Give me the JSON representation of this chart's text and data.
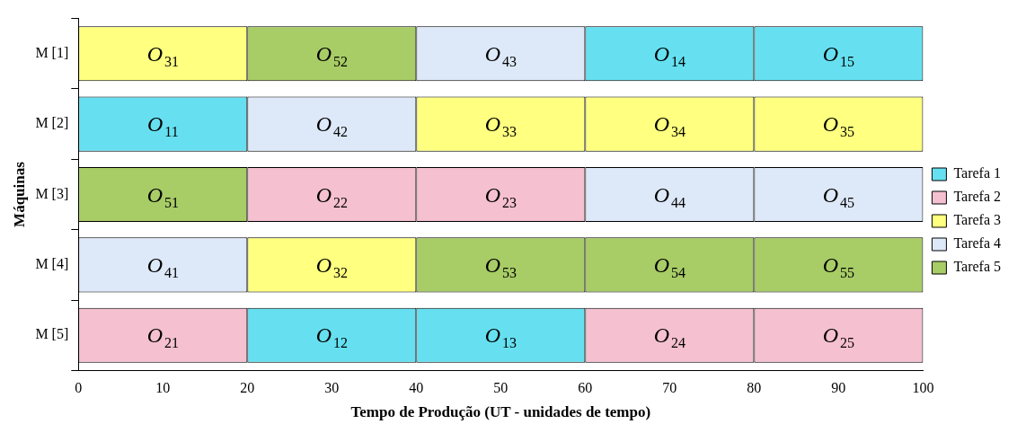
{
  "chart_data": {
    "type": "bar",
    "orientation": "horizontal",
    "stacked": true,
    "xlabel": "Tempo de Produção (UT - unidades de tempo)",
    "ylabel": "Máquinas",
    "categories": [
      "M [1]",
      "M [2]",
      "M [3]",
      "M [4]",
      "M [5]"
    ],
    "xlim": [
      0,
      100
    ],
    "xticks": [
      0,
      10,
      20,
      30,
      40,
      50,
      60,
      70,
      80,
      90,
      100
    ],
    "grid": false,
    "legend": "right",
    "series": [
      {
        "values": [
          20,
          20,
          20,
          20,
          20
        ],
        "colors": [
          "#ffff80",
          "#66e0f0",
          "#a8cc66",
          "#dde8f8",
          "#f5c0d0"
        ]
      },
      {
        "values": [
          20,
          20,
          20,
          20,
          20
        ],
        "colors": [
          "#a8cc66",
          "#dde8f8",
          "#f5c0d0",
          "#ffff80",
          "#66e0f0"
        ]
      },
      {
        "values": [
          20,
          20,
          20,
          20,
          20
        ],
        "colors": [
          "#dde8f8",
          "#ffff80",
          "#f5c0d0",
          "#a8cc66",
          "#66e0f0"
        ]
      },
      {
        "values": [
          20,
          20,
          20,
          20,
          20
        ],
        "colors": [
          "#66e0f0",
          "#ffff80",
          "#dde8f8",
          "#a8cc66",
          "#f5c0d0"
        ]
      },
      {
        "values": [
          20,
          20,
          20,
          20,
          20
        ],
        "colors": [
          "#66e0f0",
          "#ffff80",
          "#dde8f8",
          "#a8cc66",
          "#f5c0d0"
        ]
      },
      {
        "name": "Tarefa 1",
        "color": "#66e0f0",
        "values": [
          null,
          null,
          null,
          null,
          null
        ]
      },
      {
        "name": "Tarefa 2",
        "color": "#f5c0d0",
        "values": [
          null,
          null,
          null,
          null,
          null
        ]
      },
      {
        "name": "Tarefa 3",
        "color": "#ffff80",
        "values": [
          null,
          null,
          null,
          null,
          null
        ]
      },
      {
        "name": "Tarefa 4",
        "color": "#dde8f8",
        "values": [
          null,
          null,
          null,
          null,
          null
        ]
      },
      {
        "name": "Tarefa 5",
        "color": "#a8cc66",
        "values": [
          null,
          null,
          null,
          null,
          null
        ]
      }
    ],
    "annotations": [
      {
        "text": "O$_{31}$",
        "x": 10,
        "y": "M [1]"
      },
      {
        "text": "O$_{52}$",
        "x": 30,
        "y": "M [1]"
      },
      {
        "text": "O$_{43}$",
        "x": 50,
        "y": "M [1]"
      },
      {
        "text": "O$_{14}$",
        "x": 70,
        "y": "M [1]"
      },
      {
        "text": "O$_{15}$",
        "x": 90,
        "y": "M [1]"
      },
      {
        "text": "O$_{11}$",
        "x": 10,
        "y": "M [2]"
      },
      {
        "text": "O$_{42}$",
        "x": 30,
        "y": "M [2]"
      },
      {
        "text": "O$_{33}$",
        "x": 50,
        "y": "M [2]"
      },
      {
        "text": "O$_{34}$",
        "x": 70,
        "y": "M [2]"
      },
      {
        "text": "O$_{35}$",
        "x": 90,
        "y": "M [2]"
      },
      {
        "text": "O$_{51}$",
        "x": 10,
        "y": "M [3]"
      },
      {
        "text": "O$_{22}$",
        "x": 30,
        "y": "M [3]"
      },
      {
        "text": "O$_{23}$",
        "x": 50,
        "y": "M [3]"
      },
      {
        "text": "O$_{44}$",
        "x": 70,
        "y": "M [3]"
      },
      {
        "text": "O$_{45}$",
        "x": 90,
        "y": "M [3]"
      },
      {
        "text": "O$_{41}$",
        "x": 10,
        "y": "M [4]"
      },
      {
        "text": "O$_{32}$",
        "x": 30,
        "y": "M [4]"
      },
      {
        "text": "O$_{53}$",
        "x": 50,
        "y": "M [4]"
      },
      {
        "text": "O$_{54}$",
        "x": 70,
        "y": "M [4]"
      },
      {
        "text": "O$_{55}$",
        "x": 90,
        "y": "M [4]"
      },
      {
        "text": "O$_{21}$",
        "x": 10,
        "y": "M [5]"
      },
      {
        "text": "O$_{12}$",
        "x": 30,
        "y": "M [5]"
      },
      {
        "text": "O$_{13}$",
        "x": 50,
        "y": "M [5]"
      },
      {
        "text": "O$_{24}$",
        "x": 70,
        "y": "M [5]"
      },
      {
        "text": "O$_{25}$",
        "x": 90,
        "y": "M [5]"
      }
    ]
  }
}
